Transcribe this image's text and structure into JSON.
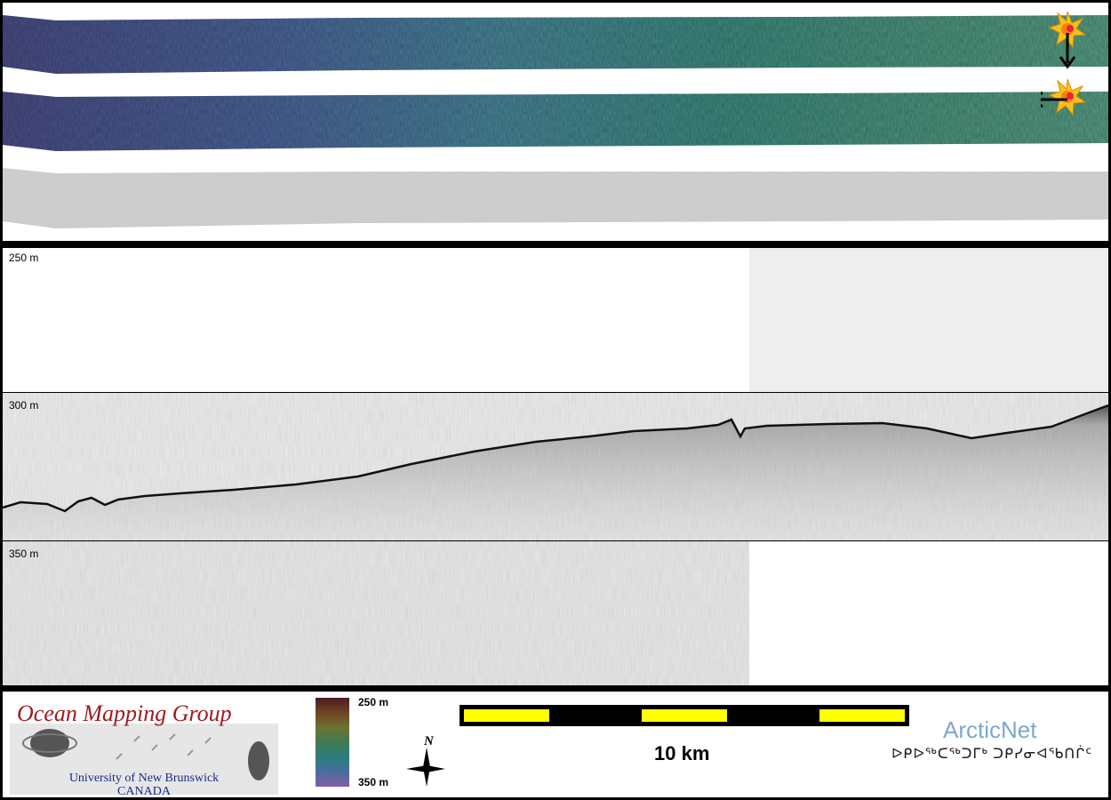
{
  "profile": {
    "depth_labels": [
      "250 m",
      "300 m",
      "350 m"
    ]
  },
  "colorbar": {
    "top_label": "250 m",
    "bottom_label": "350 m"
  },
  "scale": {
    "label": "10 km"
  },
  "logos": {
    "omg_title": "Ocean Mapping Group",
    "omg_university": "University of New Brunswick",
    "omg_country": "CANADA",
    "arcticnet_name": "ArcticNet",
    "arcticnet_inuktitut": "ᐅᑭᐅᖅᑕᖅᑐᒥᒃ ᑐᑭᓯᓂᐊᖃᑎᒌᑦ"
  },
  "compass": {
    "label": "N"
  },
  "colors": {
    "border": "#000000",
    "scale_yellow": "#ffff00",
    "omg_red": "#a01a1f",
    "omg_blue": "#1c2a8a",
    "arcticnet_blue": "#7da7d4",
    "marker_orange": "#f5a623"
  },
  "icons": [
    "sun-marker-icon",
    "arrow-down-icon",
    "arrow-left-icon",
    "north-arrow-icon"
  ]
}
